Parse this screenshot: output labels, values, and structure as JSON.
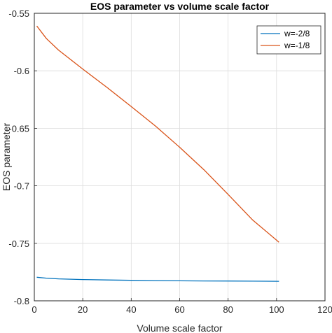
{
  "chart_data": {
    "type": "line",
    "title": "EOS parameter vs volume scale factor",
    "xlabel": "Volume scale factor",
    "ylabel": "EOS parameter",
    "xlim": [
      0,
      120
    ],
    "ylim": [
      -0.8,
      -0.55
    ],
    "xticks": [
      "0",
      "20",
      "40",
      "60",
      "80",
      "100",
      "120"
    ],
    "yticks": [
      "-0.55",
      "-0.6",
      "-0.65",
      "-0.7",
      "-0.75",
      "-0.8"
    ],
    "grid": true,
    "legend_position": "top-right",
    "series": [
      {
        "name": "w=-2/8",
        "color": "#0072BD",
        "x": [
          1,
          5,
          10,
          20,
          30,
          40,
          50,
          60,
          70,
          80,
          90,
          101
        ],
        "y": [
          -0.7795,
          -0.7803,
          -0.7809,
          -0.7815,
          -0.7819,
          -0.7822,
          -0.7824,
          -0.7826,
          -0.7827,
          -0.7828,
          -0.7829,
          -0.783
        ]
      },
      {
        "name": "w=-1/8",
        "color": "#D95319",
        "x": [
          1,
          5,
          10,
          20,
          30,
          40,
          50,
          60,
          70,
          80,
          90,
          101
        ],
        "y": [
          -0.561,
          -0.572,
          -0.582,
          -0.5985,
          -0.6145,
          -0.631,
          -0.648,
          -0.6665,
          -0.686,
          -0.7075,
          -0.7295,
          -0.749
        ]
      }
    ]
  }
}
